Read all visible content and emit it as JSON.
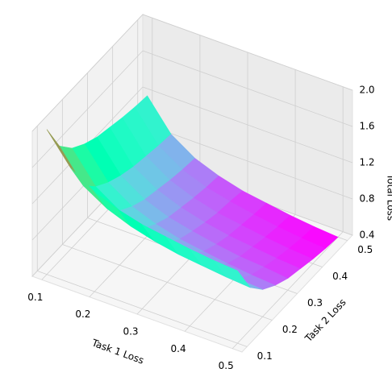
{
  "chart_data": {
    "type": "surface",
    "xlabel": "Task 1 Loss",
    "ylabel": "Task 2 Loss",
    "zlabel": "Total Loss",
    "x": [
      0.1,
      0.15,
      0.2,
      0.25,
      0.3,
      0.35,
      0.4,
      0.45,
      0.5
    ],
    "y": [
      0.1,
      0.15,
      0.2,
      0.25,
      0.3,
      0.35,
      0.4,
      0.45,
      0.5
    ],
    "z": [
      [
        2.0,
        1.67,
        1.5,
        1.4,
        1.33,
        1.29,
        1.25,
        1.22,
        1.2
      ],
      [
        1.67,
        1.33,
        1.17,
        1.07,
        1.0,
        0.95,
        0.92,
        0.89,
        0.87
      ],
      [
        1.5,
        1.17,
        1.0,
        0.9,
        0.83,
        0.79,
        0.75,
        0.72,
        0.7
      ],
      [
        1.4,
        1.07,
        0.9,
        0.8,
        0.73,
        0.69,
        0.65,
        0.62,
        0.6
      ],
      [
        1.33,
        1.0,
        0.83,
        0.73,
        0.67,
        0.62,
        0.58,
        0.56,
        0.53
      ],
      [
        1.29,
        0.95,
        0.79,
        0.69,
        0.62,
        0.57,
        0.54,
        0.51,
        0.49
      ],
      [
        1.25,
        0.92,
        0.75,
        0.65,
        0.58,
        0.54,
        0.5,
        0.47,
        0.45
      ],
      [
        1.22,
        0.89,
        0.72,
        0.62,
        0.56,
        0.51,
        0.47,
        0.44,
        0.42
      ],
      [
        1.2,
        0.87,
        0.7,
        0.6,
        0.53,
        0.49,
        0.45,
        0.42,
        0.4
      ]
    ],
    "colormap": "rainbow",
    "xlim": [
      0.08,
      0.52
    ],
    "ylim": [
      0.08,
      0.52
    ],
    "zlim": [
      0.4,
      2.0
    ],
    "xticks": [
      0.1,
      0.2,
      0.3,
      0.4,
      0.5
    ],
    "yticks": [
      0.1,
      0.2,
      0.3,
      0.4,
      0.5
    ],
    "zticks": [
      0.4,
      0.8,
      1.2,
      1.6,
      2.0
    ],
    "grid": true
  }
}
